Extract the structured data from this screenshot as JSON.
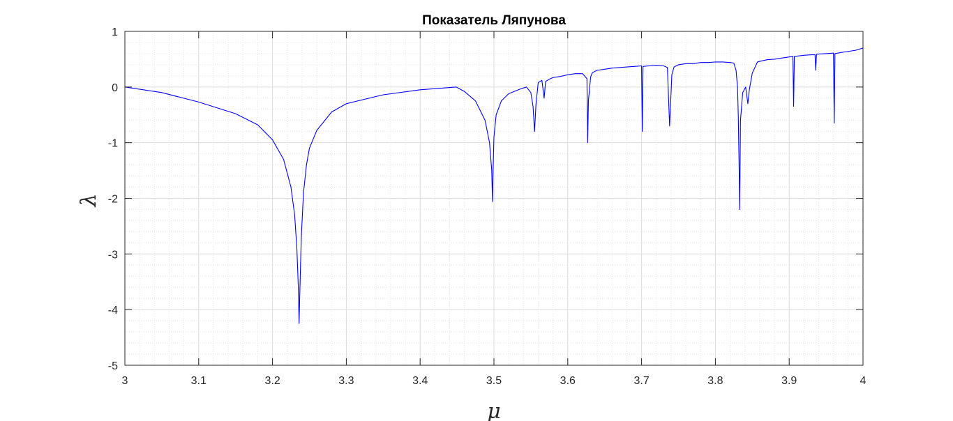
{
  "chart_data": {
    "type": "line",
    "title": "Показатель Ляпунова",
    "xlabel": "μ",
    "ylabel": "λ",
    "xlim": [
      3,
      4
    ],
    "ylim": [
      -5,
      1
    ],
    "xticks": [
      3,
      3.1,
      3.2,
      3.3,
      3.4,
      3.5,
      3.6,
      3.7,
      3.8,
      3.9,
      4
    ],
    "xtick_labels": [
      "3",
      "3.1",
      "3.2",
      "3.3",
      "3.4",
      "3.5",
      "3.6",
      "3.7",
      "3.8",
      "3.9",
      "4"
    ],
    "yticks": [
      1,
      0,
      -1,
      -2,
      -3,
      -4,
      -5
    ],
    "ytick_labels": [
      "1",
      "0",
      "-1",
      "-2",
      "-3",
      "-4",
      "-5"
    ],
    "grid": true,
    "minor_grid": true,
    "line_color": "#0000ff",
    "series": [
      {
        "x": [
          3.0,
          3.05,
          3.1,
          3.15,
          3.18,
          3.2,
          3.215,
          3.225,
          3.23,
          3.233,
          3.235,
          3.236,
          3.237,
          3.239,
          3.242,
          3.246,
          3.25,
          3.26,
          3.28,
          3.3,
          3.35,
          3.4,
          3.43,
          3.449,
          3.46,
          3.475,
          3.488,
          3.494,
          3.497,
          3.498,
          3.499,
          3.5,
          3.503,
          3.51,
          3.52,
          3.535,
          3.544,
          3.55,
          3.553,
          3.555,
          3.557,
          3.56,
          3.565,
          3.568,
          3.57,
          3.575,
          3.58,
          3.59,
          3.6,
          3.61,
          3.62,
          3.626,
          3.627,
          3.628,
          3.631,
          3.633,
          3.635,
          3.64,
          3.65,
          3.66,
          3.67,
          3.68,
          3.69,
          3.7,
          3.701,
          3.702,
          3.71,
          3.72,
          3.73,
          3.735,
          3.738,
          3.739,
          3.741,
          3.744,
          3.75,
          3.76,
          3.77,
          3.78,
          3.79,
          3.8,
          3.81,
          3.82,
          3.825,
          3.828,
          3.83,
          3.831,
          3.832,
          3.833,
          3.834,
          3.837,
          3.841,
          3.844,
          3.846,
          3.85,
          3.857,
          3.863,
          3.87,
          3.88,
          3.89,
          3.9,
          3.905,
          3.906,
          3.907,
          3.92,
          3.93,
          3.935,
          3.936,
          3.937,
          3.95,
          3.96,
          3.961,
          3.962,
          3.97,
          3.98,
          3.99,
          4.0
        ],
        "y": [
          0.0,
          -0.1,
          -0.27,
          -0.48,
          -0.68,
          -0.95,
          -1.3,
          -1.8,
          -2.3,
          -2.9,
          -3.6,
          -4.25,
          -3.7,
          -2.7,
          -1.9,
          -1.4,
          -1.1,
          -0.78,
          -0.45,
          -0.3,
          -0.14,
          -0.05,
          -0.02,
          0.0,
          -0.08,
          -0.25,
          -0.6,
          -1.0,
          -1.5,
          -2.06,
          -1.4,
          -0.9,
          -0.5,
          -0.25,
          -0.12,
          -0.04,
          0.0,
          -0.1,
          -0.35,
          -0.8,
          -0.3,
          0.08,
          0.12,
          -0.2,
          0.1,
          0.14,
          0.17,
          0.19,
          0.22,
          0.24,
          0.24,
          0.15,
          -1.0,
          -0.25,
          0.18,
          0.25,
          0.27,
          0.3,
          0.32,
          0.34,
          0.35,
          0.36,
          0.37,
          0.38,
          -0.8,
          0.37,
          0.38,
          0.39,
          0.38,
          0.35,
          -0.7,
          -0.4,
          0.22,
          0.36,
          0.4,
          0.42,
          0.42,
          0.44,
          0.44,
          0.45,
          0.45,
          0.44,
          0.43,
          0.3,
          0.0,
          -0.5,
          -1.3,
          -2.2,
          -0.6,
          -0.1,
          0.0,
          -0.3,
          -0.05,
          0.25,
          0.45,
          0.47,
          0.49,
          0.5,
          0.52,
          0.54,
          0.55,
          -0.35,
          0.55,
          0.57,
          0.58,
          0.58,
          0.3,
          0.59,
          0.6,
          0.61,
          -0.65,
          0.6,
          0.62,
          0.64,
          0.66,
          0.7
        ]
      }
    ]
  }
}
